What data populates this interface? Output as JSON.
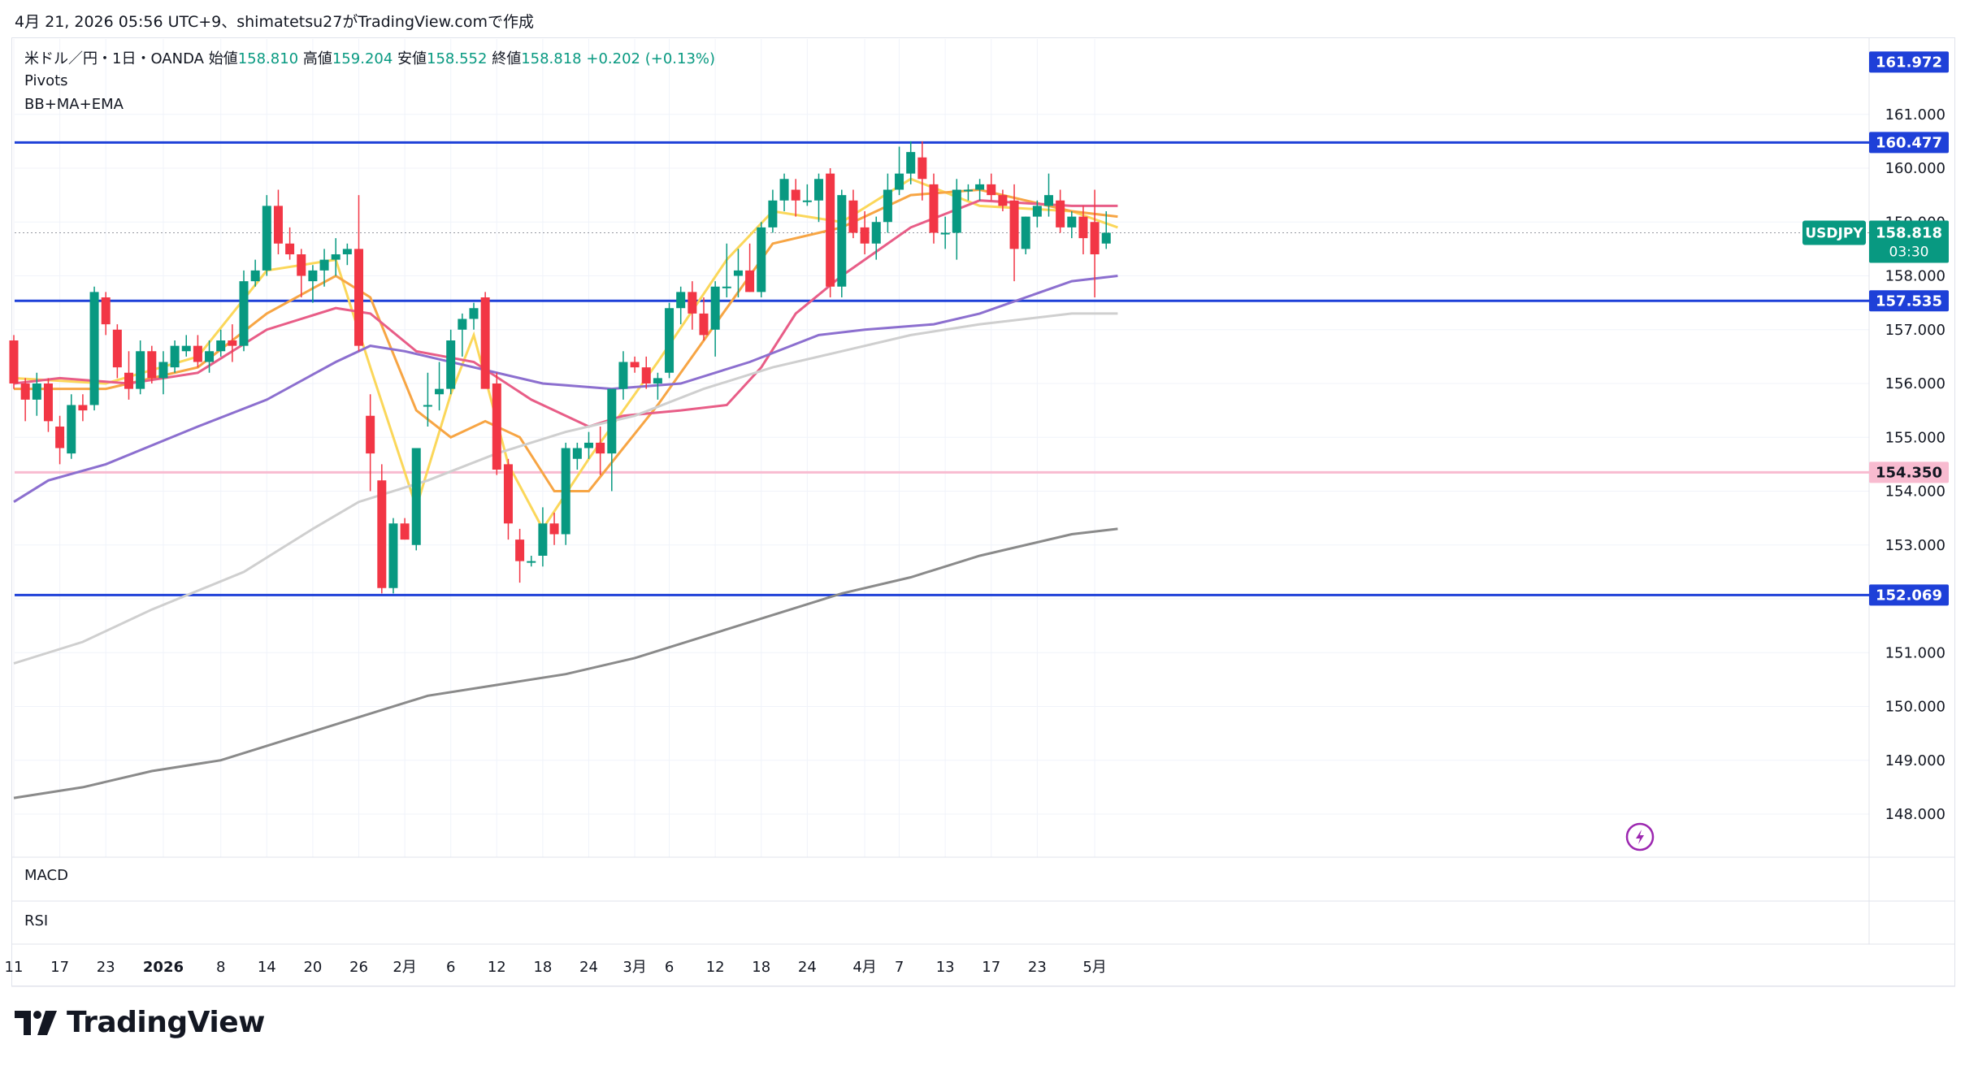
{
  "header": {
    "caption": "4月 21, 2026 05:56 UTC+9、shimatetsu27がTradingView.comで作成"
  },
  "legend": {
    "symbol": "米ドル／円・1日・OANDA",
    "open_label": "始値",
    "open": "158.810",
    "high_label": "高値",
    "high": "159.204",
    "low_label": "安値",
    "low": "158.552",
    "close_label": "終値",
    "close": "158.818",
    "change": "+0.202 (+0.13%)",
    "indicator1": "Pivots",
    "indicator2": "BB+MA+EMA"
  },
  "panes": {
    "macd": "MACD",
    "rsi": "RSI"
  },
  "price_tag": {
    "symbol": "USDJPY",
    "price": "158.818",
    "countdown": "03:30"
  },
  "brand": {
    "name": "TradingView",
    "icon": "tradingview-logo-icon"
  },
  "colors": {
    "up": "#089981",
    "down": "#f23645",
    "pivot_line": "#1e40d8",
    "pink_level": "#f8bbd0",
    "ema_yellow": "#fbd75a",
    "ma_orange": "#f7a544",
    "ma_pink": "#e85d87",
    "ma_purple": "#8c6fcf",
    "ma_lightgray": "#cfcfcf",
    "ma_darkgray": "#8a8a8a"
  },
  "chart_data": {
    "type": "candlestick",
    "y_range": [
      147.2,
      162.4
    ],
    "y_ticks": [
      148,
      149,
      150,
      151,
      152,
      153,
      154,
      155,
      156,
      157,
      158,
      159,
      160,
      161
    ],
    "x_ticks": [
      {
        "label": "11",
        "i": 0
      },
      {
        "label": "17",
        "i": 4
      },
      {
        "label": "23",
        "i": 8
      },
      {
        "label": "2026",
        "i": 13
      },
      {
        "label": "8",
        "i": 18
      },
      {
        "label": "14",
        "i": 22
      },
      {
        "label": "20",
        "i": 26
      },
      {
        "label": "26",
        "i": 30
      },
      {
        "label": "2月",
        "i": 34
      },
      {
        "label": "6",
        "i": 38
      },
      {
        "label": "12",
        "i": 42
      },
      {
        "label": "18",
        "i": 46
      },
      {
        "label": "24",
        "i": 50
      },
      {
        "label": "3月",
        "i": 54
      },
      {
        "label": "6",
        "i": 57
      },
      {
        "label": "12",
        "i": 61
      },
      {
        "label": "18",
        "i": 65
      },
      {
        "label": "24",
        "i": 69
      },
      {
        "label": "4月",
        "i": 74
      },
      {
        "label": "7",
        "i": 77
      },
      {
        "label": "13",
        "i": 81
      },
      {
        "label": "17",
        "i": 85
      },
      {
        "label": "23",
        "i": 89
      },
      {
        "label": "5月",
        "i": 94
      }
    ],
    "levels": [
      {
        "value": 161.972,
        "label": "161.972",
        "color": "#1e40d8",
        "line": false
      },
      {
        "value": 160.477,
        "label": "160.477",
        "color": "#1e40d8",
        "line": true
      },
      {
        "value": 157.535,
        "label": "157.535",
        "color": "#1e40d8",
        "line": true
      },
      {
        "value": 154.35,
        "label": "154.350",
        "color": "#f8bbd0",
        "line": true
      },
      {
        "value": 152.069,
        "label": "152.069",
        "color": "#1e40d8",
        "line": true
      }
    ],
    "candles": [
      [
        156.8,
        156.9,
        155.9,
        156.0
      ],
      [
        156.0,
        156.1,
        155.3,
        155.7
      ],
      [
        155.7,
        156.2,
        155.4,
        156.0
      ],
      [
        156.0,
        156.1,
        155.1,
        155.3
      ],
      [
        155.2,
        155.4,
        154.5,
        154.8
      ],
      [
        154.7,
        155.8,
        154.6,
        155.6
      ],
      [
        155.6,
        155.8,
        155.3,
        155.5
      ],
      [
        155.6,
        157.8,
        155.5,
        157.7
      ],
      [
        157.6,
        157.7,
        156.9,
        157.1
      ],
      [
        157.0,
        157.1,
        156.1,
        156.3
      ],
      [
        156.2,
        156.6,
        155.7,
        155.9
      ],
      [
        155.9,
        156.8,
        155.8,
        156.6
      ],
      [
        156.6,
        156.7,
        156.0,
        156.1
      ],
      [
        156.1,
        156.6,
        155.8,
        156.4
      ],
      [
        156.3,
        156.8,
        156.2,
        156.7
      ],
      [
        156.6,
        156.9,
        156.5,
        156.7
      ],
      [
        156.7,
        156.9,
        156.3,
        156.4
      ],
      [
        156.4,
        156.8,
        156.2,
        156.6
      ],
      [
        156.6,
        157.0,
        156.5,
        156.8
      ],
      [
        156.8,
        157.1,
        156.4,
        156.7
      ],
      [
        156.7,
        158.1,
        156.6,
        157.9
      ],
      [
        157.9,
        158.3,
        157.8,
        158.1
      ],
      [
        158.1,
        159.5,
        158.0,
        159.3
      ],
      [
        159.3,
        159.6,
        158.4,
        158.6
      ],
      [
        158.6,
        158.9,
        158.3,
        158.4
      ],
      [
        158.4,
        158.5,
        157.6,
        158.0
      ],
      [
        157.9,
        158.2,
        157.5,
        158.1
      ],
      [
        158.1,
        158.5,
        157.8,
        158.3
      ],
      [
        158.3,
        158.7,
        158.0,
        158.4
      ],
      [
        158.4,
        158.6,
        158.2,
        158.5
      ],
      [
        158.5,
        159.5,
        156.6,
        156.7
      ],
      [
        155.4,
        155.8,
        154.0,
        154.7
      ],
      [
        154.2,
        154.5,
        152.1,
        152.2
      ],
      [
        152.2,
        153.5,
        152.1,
        153.4
      ],
      [
        153.4,
        153.5,
        153.1,
        153.1
      ],
      [
        153.0,
        154.8,
        152.9,
        154.8
      ],
      [
        155.6,
        156.2,
        155.2,
        155.6
      ],
      [
        155.8,
        156.4,
        155.5,
        155.9
      ],
      [
        155.9,
        157.0,
        155.8,
        156.8
      ],
      [
        157.0,
        157.3,
        156.5,
        157.2
      ],
      [
        157.2,
        157.5,
        157.0,
        157.4
      ],
      [
        157.6,
        157.7,
        156.0,
        155.9
      ],
      [
        156.0,
        156.2,
        154.3,
        154.4
      ],
      [
        154.5,
        154.6,
        153.1,
        153.4
      ],
      [
        153.1,
        153.3,
        152.3,
        152.7
      ],
      [
        152.7,
        152.8,
        152.6,
        152.7
      ],
      [
        152.8,
        153.7,
        152.6,
        153.4
      ],
      [
        153.4,
        153.6,
        153.0,
        153.2
      ],
      [
        153.2,
        154.9,
        153.0,
        154.8
      ],
      [
        154.6,
        154.9,
        154.4,
        154.8
      ],
      [
        154.8,
        155.1,
        154.6,
        154.9
      ],
      [
        154.9,
        155.2,
        154.3,
        154.7
      ],
      [
        154.7,
        155.8,
        154.0,
        155.9
      ],
      [
        155.9,
        156.6,
        155.7,
        156.4
      ],
      [
        156.4,
        156.5,
        156.2,
        156.3
      ],
      [
        156.3,
        156.5,
        155.9,
        156.0
      ],
      [
        156.0,
        156.2,
        155.7,
        156.1
      ],
      [
        156.2,
        157.5,
        156.1,
        157.4
      ],
      [
        157.4,
        157.8,
        157.1,
        157.7
      ],
      [
        157.7,
        157.9,
        157.0,
        157.3
      ],
      [
        157.3,
        157.6,
        156.8,
        156.9
      ],
      [
        157.0,
        157.9,
        156.5,
        157.8
      ],
      [
        157.8,
        158.6,
        157.6,
        157.8
      ],
      [
        158.0,
        158.5,
        157.6,
        158.1
      ],
      [
        158.1,
        158.6,
        157.7,
        157.7
      ],
      [
        157.7,
        159.0,
        157.6,
        158.9
      ],
      [
        158.9,
        159.6,
        158.8,
        159.4
      ],
      [
        159.4,
        159.9,
        159.2,
        159.8
      ],
      [
        159.6,
        159.8,
        159.1,
        159.4
      ],
      [
        159.4,
        159.7,
        159.3,
        159.4
      ],
      [
        159.4,
        159.9,
        159.0,
        159.8
      ],
      [
        159.9,
        160.0,
        157.6,
        157.8
      ],
      [
        157.8,
        159.6,
        157.6,
        159.5
      ],
      [
        159.4,
        159.6,
        158.7,
        158.8
      ],
      [
        158.9,
        159.2,
        158.4,
        158.6
      ],
      [
        158.6,
        159.1,
        158.3,
        159.0
      ],
      [
        159.0,
        159.9,
        158.8,
        159.6
      ],
      [
        159.6,
        160.4,
        159.5,
        159.9
      ],
      [
        159.9,
        160.5,
        159.7,
        160.3
      ],
      [
        160.2,
        160.5,
        159.4,
        159.8
      ],
      [
        159.7,
        159.9,
        158.6,
        158.8
      ],
      [
        158.8,
        159.1,
        158.5,
        158.8
      ],
      [
        158.8,
        159.8,
        158.3,
        159.6
      ],
      [
        159.6,
        159.7,
        159.4,
        159.6
      ],
      [
        159.6,
        159.8,
        159.4,
        159.7
      ],
      [
        159.7,
        159.9,
        159.4,
        159.5
      ],
      [
        159.5,
        159.6,
        159.2,
        159.3
      ],
      [
        159.4,
        159.7,
        157.9,
        158.5
      ],
      [
        158.5,
        159.1,
        158.4,
        159.1
      ],
      [
        159.1,
        159.4,
        158.9,
        159.3
      ],
      [
        159.3,
        159.9,
        159.1,
        159.5
      ],
      [
        159.4,
        159.6,
        158.8,
        158.9
      ],
      [
        158.9,
        159.2,
        158.7,
        159.1
      ],
      [
        159.1,
        159.3,
        158.4,
        158.7
      ],
      [
        159.0,
        159.6,
        157.6,
        158.4
      ],
      [
        158.6,
        159.2,
        158.5,
        158.8
      ]
    ],
    "ma_lines": [
      {
        "name": "ema",
        "color": "#fbd75a",
        "values": [
          [
            0,
            156.1
          ],
          [
            8,
            156.0
          ],
          [
            16,
            156.5
          ],
          [
            22,
            158.1
          ],
          [
            28,
            158.3
          ],
          [
            31,
            156.3
          ],
          [
            35,
            153.7
          ],
          [
            38,
            155.8
          ],
          [
            40,
            156.9
          ],
          [
            43,
            154.5
          ],
          [
            46,
            153.3
          ],
          [
            50,
            154.6
          ],
          [
            56,
            156.4
          ],
          [
            62,
            158.3
          ],
          [
            66,
            159.2
          ],
          [
            72,
            159.0
          ],
          [
            78,
            159.8
          ],
          [
            84,
            159.3
          ],
          [
            92,
            159.2
          ],
          [
            96,
            158.9
          ]
        ]
      },
      {
        "name": "ma-orange",
        "color": "#f7a544",
        "values": [
          [
            0,
            155.9
          ],
          [
            8,
            155.9
          ],
          [
            16,
            156.3
          ],
          [
            22,
            157.3
          ],
          [
            28,
            158.0
          ],
          [
            31,
            157.6
          ],
          [
            35,
            155.5
          ],
          [
            38,
            155.0
          ],
          [
            41,
            155.3
          ],
          [
            44,
            155.0
          ],
          [
            47,
            154.0
          ],
          [
            50,
            154.0
          ],
          [
            56,
            155.6
          ],
          [
            62,
            157.4
          ],
          [
            66,
            158.6
          ],
          [
            72,
            158.9
          ],
          [
            78,
            159.5
          ],
          [
            84,
            159.6
          ],
          [
            92,
            159.2
          ],
          [
            96,
            159.1
          ]
        ]
      },
      {
        "name": "ma-pink",
        "color": "#e85d87",
        "values": [
          [
            0,
            156.0
          ],
          [
            4,
            156.1
          ],
          [
            10,
            156.0
          ],
          [
            16,
            156.2
          ],
          [
            22,
            157.0
          ],
          [
            28,
            157.4
          ],
          [
            31,
            157.3
          ],
          [
            35,
            156.6
          ],
          [
            40,
            156.4
          ],
          [
            45,
            155.7
          ],
          [
            50,
            155.2
          ],
          [
            53,
            155.4
          ],
          [
            58,
            155.5
          ],
          [
            62,
            155.6
          ],
          [
            65,
            156.3
          ],
          [
            68,
            157.3
          ],
          [
            72,
            158.0
          ],
          [
            78,
            158.9
          ],
          [
            84,
            159.4
          ],
          [
            92,
            159.3
          ],
          [
            96,
            159.3
          ]
        ]
      },
      {
        "name": "ma-purple",
        "color": "#8c6fcf",
        "values": [
          [
            0,
            153.8
          ],
          [
            3,
            154.2
          ],
          [
            8,
            154.5
          ],
          [
            16,
            155.2
          ],
          [
            22,
            155.7
          ],
          [
            28,
            156.4
          ],
          [
            31,
            156.7
          ],
          [
            34,
            156.6
          ],
          [
            40,
            156.3
          ],
          [
            46,
            156.0
          ],
          [
            52,
            155.9
          ],
          [
            58,
            156.0
          ],
          [
            64,
            156.4
          ],
          [
            70,
            156.9
          ],
          [
            74,
            157.0
          ],
          [
            80,
            157.1
          ],
          [
            84,
            157.3
          ],
          [
            88,
            157.6
          ],
          [
            92,
            157.9
          ],
          [
            96,
            158.0
          ]
        ]
      },
      {
        "name": "ma-lightgray",
        "color": "#cfcfcf",
        "values": [
          [
            0,
            150.8
          ],
          [
            6,
            151.2
          ],
          [
            12,
            151.8
          ],
          [
            20,
            152.5
          ],
          [
            26,
            153.3
          ],
          [
            30,
            153.8
          ],
          [
            36,
            154.2
          ],
          [
            42,
            154.7
          ],
          [
            48,
            155.1
          ],
          [
            54,
            155.4
          ],
          [
            60,
            155.9
          ],
          [
            66,
            156.3
          ],
          [
            72,
            156.6
          ],
          [
            78,
            156.9
          ],
          [
            84,
            157.1
          ],
          [
            92,
            157.3
          ],
          [
            96,
            157.3
          ]
        ]
      },
      {
        "name": "ma-darkgray",
        "color": "#8a8a8a",
        "values": [
          [
            0,
            148.3
          ],
          [
            6,
            148.5
          ],
          [
            12,
            148.8
          ],
          [
            18,
            149.0
          ],
          [
            24,
            149.4
          ],
          [
            30,
            149.8
          ],
          [
            36,
            150.2
          ],
          [
            42,
            150.4
          ],
          [
            48,
            150.6
          ],
          [
            54,
            150.9
          ],
          [
            60,
            151.3
          ],
          [
            66,
            151.7
          ],
          [
            72,
            152.1
          ],
          [
            78,
            152.4
          ],
          [
            84,
            152.8
          ],
          [
            92,
            153.2
          ],
          [
            96,
            153.3
          ]
        ]
      }
    ]
  }
}
